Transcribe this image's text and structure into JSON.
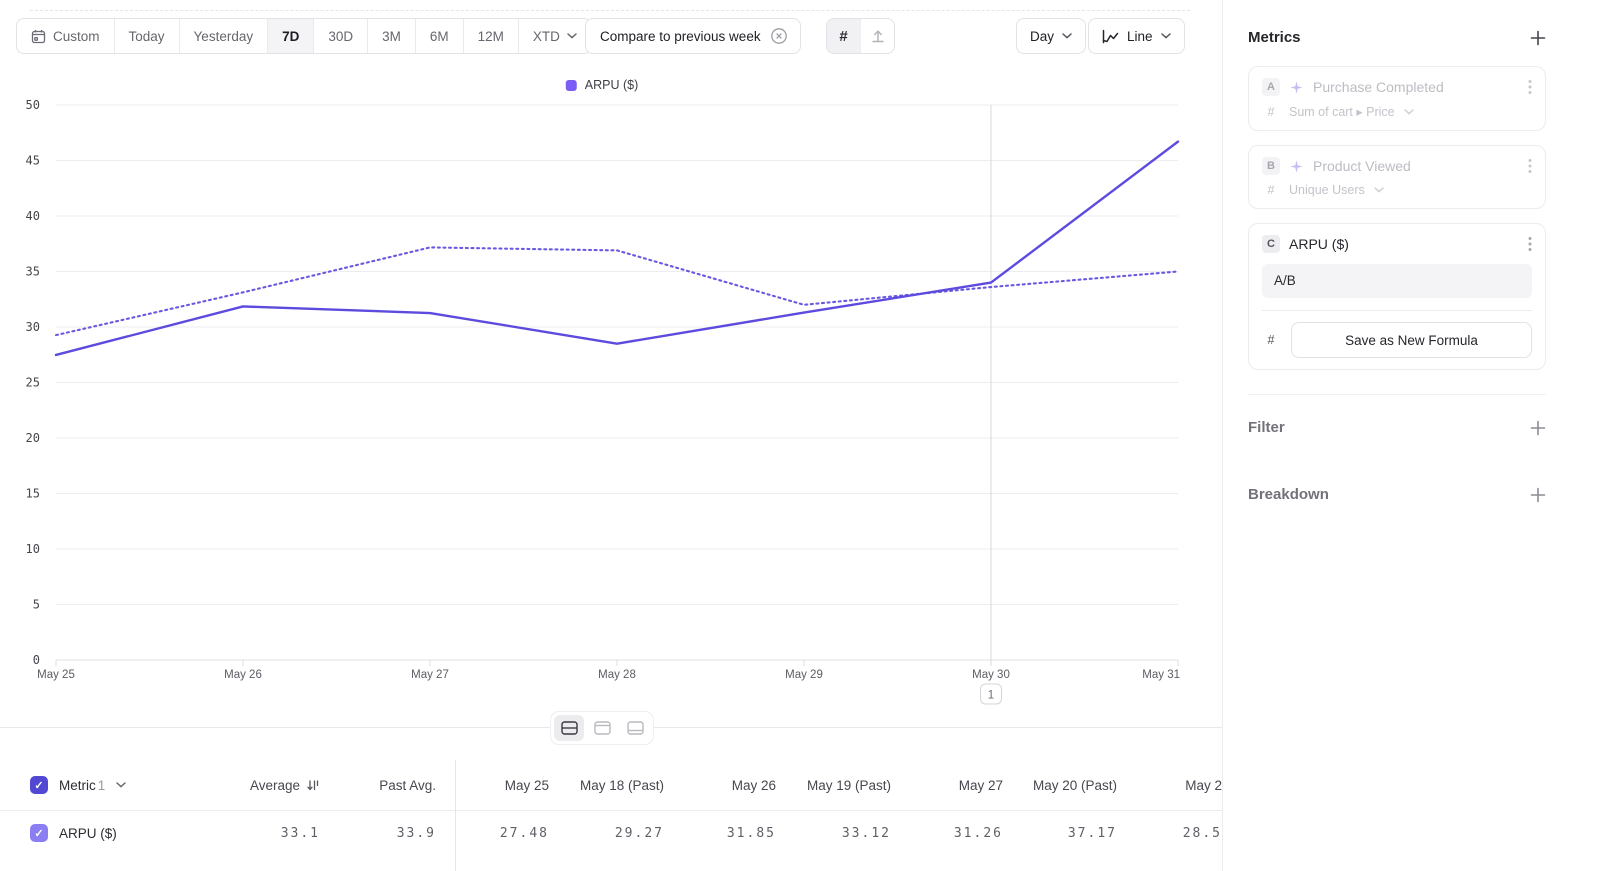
{
  "toolbar": {
    "date_ranges": [
      "Custom",
      "Today",
      "Yesterday",
      "7D",
      "30D",
      "3M",
      "6M",
      "12M",
      "XTD"
    ],
    "selected_range": "7D",
    "compare_chip": "Compare to previous week",
    "hash_toggle": "#",
    "granularity": "Day",
    "chart_type": "Line"
  },
  "legend": {
    "label": "ARPU ($)"
  },
  "chart_data": {
    "type": "line",
    "title": "ARPU ($)",
    "x": [
      "May 25",
      "May 26",
      "May 27",
      "May 28",
      "May 29",
      "May 30",
      "May 31"
    ],
    "series": [
      {
        "name": "ARPU ($)",
        "style": "solid",
        "values": [
          27.48,
          31.85,
          31.26,
          28.5,
          31.3,
          34.0,
          46.7
        ]
      },
      {
        "name": "ARPU ($) previous week",
        "style": "dotted",
        "values": [
          29.27,
          33.12,
          37.17,
          36.9,
          32.0,
          33.6,
          35.0
        ]
      }
    ],
    "ylim": [
      0,
      50
    ],
    "ytick_step": 5,
    "xlabel": "",
    "ylabel": "",
    "grid": "horizontal",
    "legend_position": "top-center",
    "color": "#5C4BDE"
  },
  "annotation": {
    "date": "May 30",
    "marker": "1"
  },
  "table": {
    "metric_label": "Metric",
    "metric_count": "1",
    "columns": [
      "Average",
      "Past Avg.",
      "May 25",
      "May 18 (Past)",
      "May 26",
      "May 19 (Past)",
      "May 27",
      "May 20 (Past)",
      "May 2"
    ],
    "row": {
      "name": "ARPU ($)",
      "values": [
        "33.1",
        "33.9",
        "27.48",
        "29.27",
        "31.85",
        "33.12",
        "31.26",
        "37.17",
        "28.5"
      ]
    }
  },
  "sidebar": {
    "metrics_title": "Metrics",
    "cards": [
      {
        "badge": "A",
        "title": "Purchase Completed",
        "prefix": "#",
        "subtitle": "Sum of cart ▸ Price"
      },
      {
        "badge": "B",
        "title": "Product Viewed",
        "prefix": "#",
        "subtitle": "Unique Users"
      },
      {
        "badge": "C",
        "title": "ARPU ($)",
        "prefix": "#",
        "formula": "A/B",
        "save_button": "Save as New Formula"
      }
    ],
    "filter_title": "Filter",
    "breakdown_title": "Breakdown"
  },
  "icons": {
    "check": "✓"
  },
  "colors": {
    "line": "#5C4BDE",
    "legend_swatch": "#7B5CF5",
    "checkbox_header": "#5348D4",
    "checkbox_row": "#8A7EF2",
    "annotation_line": "#D8D8DD",
    "gridline": "#EDEDF0",
    "selected_segment_bg": "#F4F4F6"
  }
}
